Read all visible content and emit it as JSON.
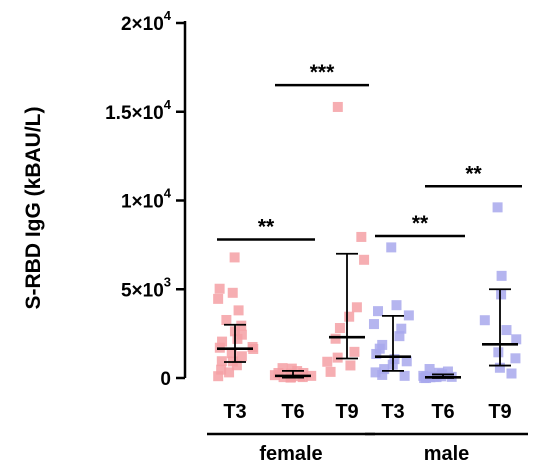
{
  "chart_data": {
    "type": "scatter",
    "ylabel": "S-RBD IgG (kBAU/L)",
    "ylim": [
      0,
      20000
    ],
    "yticks": [
      {
        "value": 0,
        "mant": "0",
        "exp": ""
      },
      {
        "value": 5000,
        "mant": "5×10",
        "exp": "3"
      },
      {
        "value": 10000,
        "mant": "1×10",
        "exp": "4"
      },
      {
        "value": 15000,
        "mant": "1.5×10",
        "exp": "4"
      },
      {
        "value": 20000,
        "mant": "2×10",
        "exp": "4"
      }
    ],
    "groups": [
      {
        "name": "female",
        "color": "#f4a0a4",
        "median_color": "#d8475a"
      },
      {
        "name": "male",
        "color": "#a8a8ec",
        "median_color": "#3a3ac8"
      }
    ],
    "series": [
      {
        "group": 0,
        "label": "T3",
        "median": 1650,
        "q1": 900,
        "q3": 3000,
        "values": [
          6800,
          5000,
          4800,
          4500,
          3800,
          3300,
          2900,
          2600,
          2400,
          2200,
          2000,
          1800,
          1700,
          1600,
          1400,
          1200,
          1000,
          900,
          700,
          500,
          300,
          150
        ]
      },
      {
        "group": 0,
        "label": "T6",
        "median": 120,
        "q1": 20,
        "q3": 400,
        "values": [
          600,
          500,
          380,
          300,
          250,
          200,
          150,
          120,
          100,
          80,
          60,
          40,
          20,
          10
        ]
      },
      {
        "group": 0,
        "label": "T9",
        "median": 2300,
        "q1": 1100,
        "q3": 7000,
        "values": [
          15300,
          8000,
          6700,
          4000,
          3400,
          2800,
          2200,
          1500,
          1200,
          900,
          700,
          400
        ]
      },
      {
        "group": 1,
        "label": "T3",
        "median": 1200,
        "q1": 400,
        "q3": 3500,
        "values": [
          7400,
          4100,
          3800,
          3500,
          3000,
          2800,
          2400,
          1900,
          1600,
          1300,
          1100,
          900,
          700,
          500,
          300,
          150,
          80
        ]
      },
      {
        "group": 1,
        "label": "T6",
        "median": 40,
        "q1": 0,
        "q3": 200,
        "values": [
          450,
          320,
          250,
          200,
          150,
          120,
          100,
          80,
          60,
          40,
          30,
          20,
          10
        ]
      },
      {
        "group": 1,
        "label": "T9",
        "median": 1900,
        "q1": 700,
        "q3": 5000,
        "values": [
          9600,
          5800,
          4700,
          3300,
          2700,
          2200,
          1500,
          1100,
          600,
          300
        ]
      }
    ],
    "significance": [
      {
        "from": 0,
        "to": 1,
        "y": 7800,
        "label": "**"
      },
      {
        "from": 1,
        "to": 2,
        "y": 16500,
        "label": "***"
      },
      {
        "from": 3,
        "to": 4,
        "y": 8000,
        "label": "**"
      },
      {
        "from": 4,
        "to": 5,
        "y": 10800,
        "label": "**"
      }
    ]
  }
}
